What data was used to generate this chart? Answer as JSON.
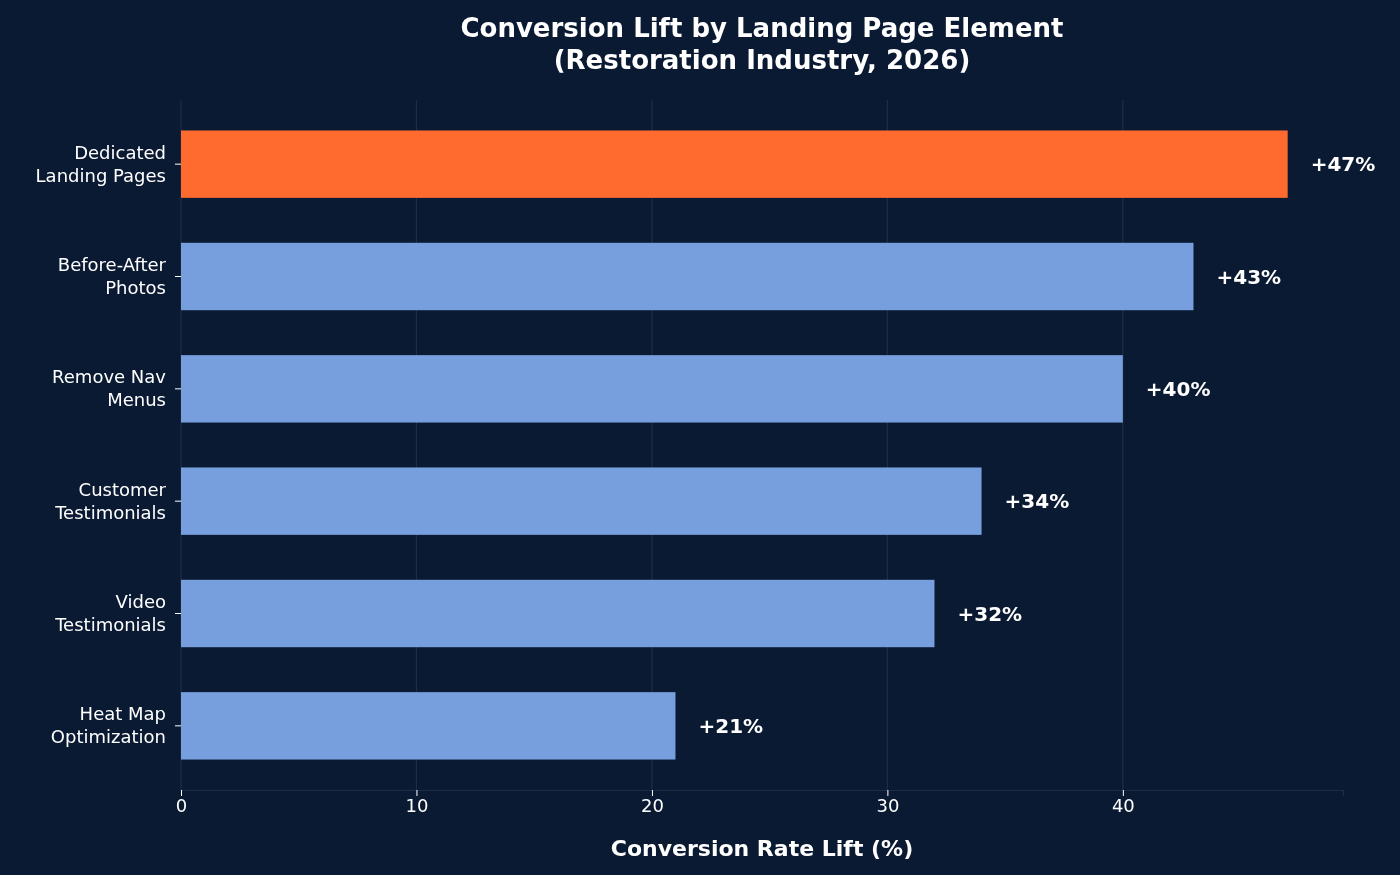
{
  "chart_data": {
    "type": "bar",
    "orientation": "horizontal",
    "title": "Conversion Lift by Landing Page Element\n(Restoration Industry, 2026)",
    "xlabel": "Conversion Rate Lift (%)",
    "categories": [
      "Dedicated\nLanding Pages",
      "Before-After\nPhotos",
      "Remove Nav\nMenus",
      "Customer\nTestimonials",
      "Video\nTestimonials",
      "Heat Map\nOptimization"
    ],
    "values": [
      47,
      43,
      40,
      34,
      32,
      21
    ],
    "colors": [
      "#ff6b2e",
      "#779fdd",
      "#779fdd",
      "#779fdd",
      "#779fdd",
      "#779fdd"
    ],
    "value_labels": [
      "+47%",
      "+43%",
      "+40%",
      "+34%",
      "+32%",
      "+21%"
    ],
    "xlim": [
      0,
      49.35
    ],
    "xticks": [
      0,
      10,
      20,
      30,
      40
    ],
    "grid": "x"
  }
}
